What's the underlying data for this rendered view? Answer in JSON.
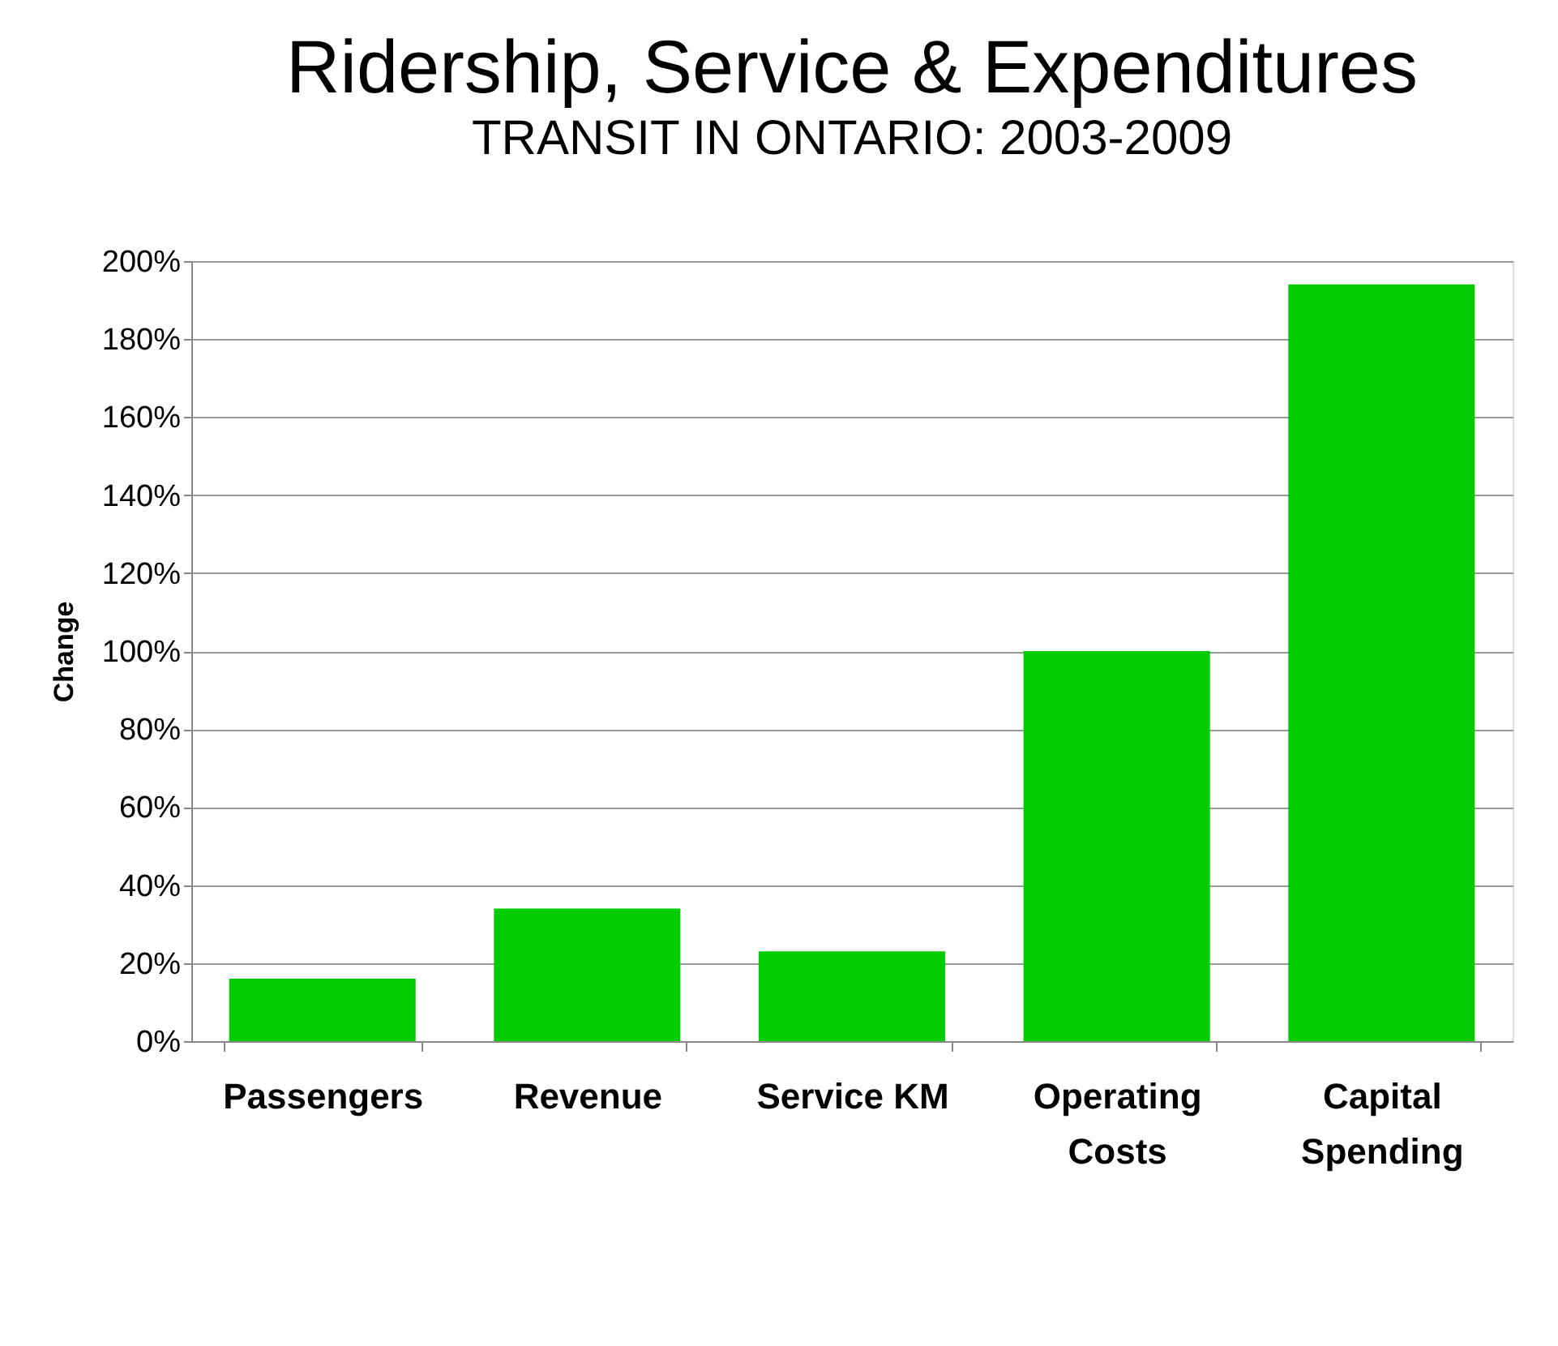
{
  "chart_data": {
    "type": "bar",
    "title": "Ridership, Service & Expenditures",
    "subtitle": "TRANSIT IN ONTARIO: 2003-2009",
    "ylabel": "Change",
    "categories": [
      "Passengers",
      "Revenue",
      "Service KM",
      "Operating Costs",
      "Capital Spending"
    ],
    "values": [
      16,
      34,
      23,
      100,
      194
    ],
    "color": "#00cc00",
    "ylim": [
      0,
      200
    ],
    "yticks": [
      {
        "value": 0,
        "label": "0%"
      },
      {
        "value": 20,
        "label": "20%"
      },
      {
        "value": 40,
        "label": "40%"
      },
      {
        "value": 60,
        "label": "60%"
      },
      {
        "value": 80,
        "label": "80%"
      },
      {
        "value": 100,
        "label": "100%"
      },
      {
        "value": 120,
        "label": "120%"
      },
      {
        "value": 140,
        "label": "140%"
      },
      {
        "value": 160,
        "label": "160%"
      },
      {
        "value": 180,
        "label": "180%"
      },
      {
        "value": 200,
        "label": "200%"
      }
    ],
    "grid": "y"
  }
}
